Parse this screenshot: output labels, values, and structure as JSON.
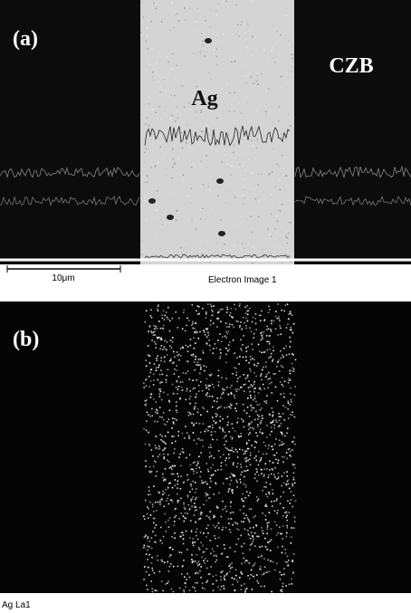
{
  "panel_a": {
    "label": "(a)",
    "ag_label": "Ag",
    "czb_label": "CZB",
    "scale_bar": "10μm",
    "image_caption": "Electron Image 1"
  },
  "panel_b": {
    "label": "(b)",
    "caption": "Ag La1"
  }
}
